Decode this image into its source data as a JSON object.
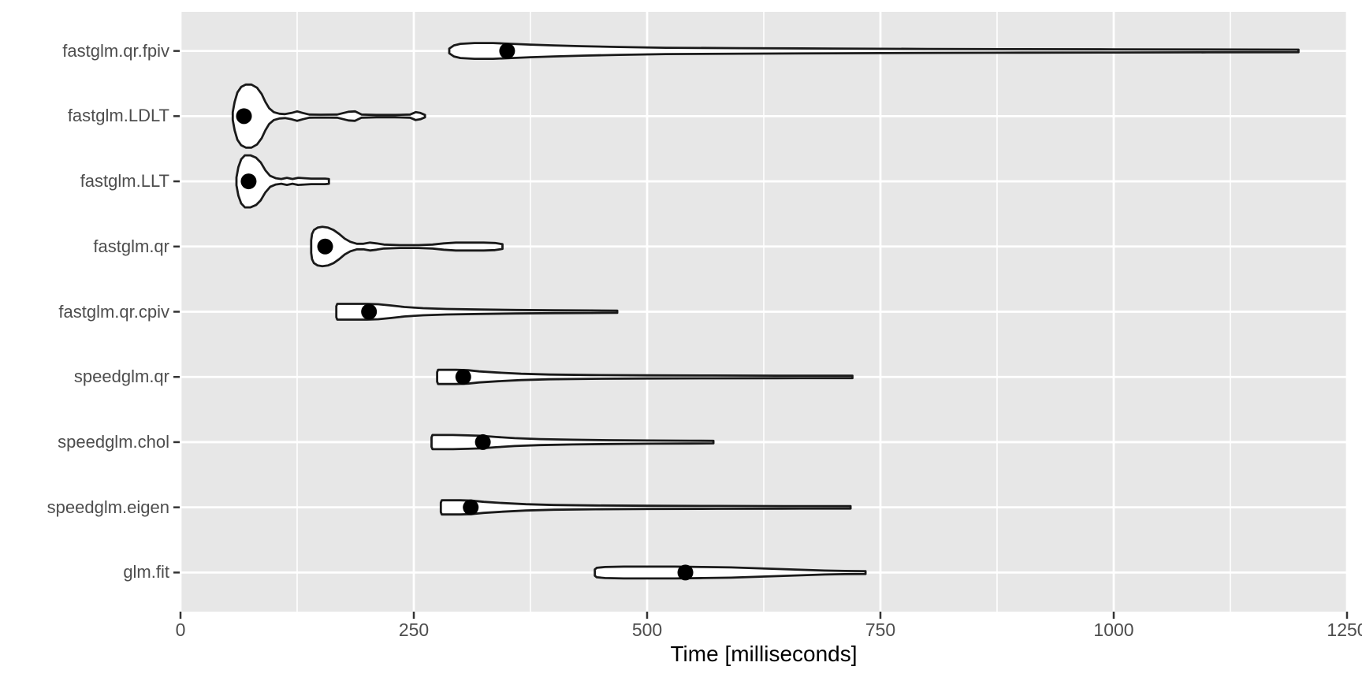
{
  "colors": {
    "panel_background": "#E7E7E7",
    "grid": "#FFFFFF",
    "violin_fill": "#FFFFFF",
    "violin_stroke": "#1A1A1A",
    "median_point": "#000000",
    "axis_text": "#4D4D4D",
    "axis_title": "#000000",
    "tick_mark": "#333333"
  },
  "chart_data": {
    "type": "violin",
    "orientation": "horizontal",
    "title": "",
    "xlabel": "Time [milliseconds]",
    "ylabel": "",
    "xlim": [
      0,
      1250
    ],
    "x_major_ticks": [
      0,
      250,
      500,
      750,
      1000,
      1250
    ],
    "x_minor_gridlines": [
      125,
      375,
      625,
      875,
      1125
    ],
    "grid": "white major+minor vertical, white major horizontal, grey panel",
    "legend_position": "none",
    "categories": [
      "fastglm.qr.fpiv",
      "fastglm.LDLT",
      "fastglm.LLT",
      "fastglm.qr",
      "fastglm.qr.cpiv",
      "speedglm.qr",
      "speedglm.chol",
      "speedglm.eigen",
      "glm.fit"
    ],
    "series": [
      {
        "name": "fastglm.qr.fpiv",
        "min_ms": 288,
        "max_ms": 1198,
        "median_ms": 350,
        "profile": [
          [
            288,
            3
          ],
          [
            293,
            7
          ],
          [
            300,
            9
          ],
          [
            315,
            10
          ],
          [
            335,
            10
          ],
          [
            355,
            9
          ],
          [
            375,
            8
          ],
          [
            400,
            7
          ],
          [
            430,
            6
          ],
          [
            470,
            5
          ],
          [
            520,
            4
          ],
          [
            600,
            3.5
          ],
          [
            700,
            3
          ],
          [
            800,
            2.5
          ],
          [
            900,
            2.2
          ],
          [
            1000,
            2
          ],
          [
            1100,
            1.8
          ],
          [
            1198,
            1.6
          ]
        ]
      },
      {
        "name": "fastglm.LDLT",
        "min_ms": 56,
        "max_ms": 263,
        "median_ms": 68,
        "profile": [
          [
            56,
            5
          ],
          [
            58,
            18
          ],
          [
            61,
            30
          ],
          [
            65,
            37
          ],
          [
            70,
            40
          ],
          [
            76,
            40
          ],
          [
            82,
            36
          ],
          [
            87,
            28
          ],
          [
            91,
            18
          ],
          [
            95,
            10
          ],
          [
            100,
            5
          ],
          [
            106,
            3
          ],
          [
            112,
            2.5
          ],
          [
            119,
            4
          ],
          [
            125,
            6
          ],
          [
            131,
            4
          ],
          [
            138,
            2
          ],
          [
            150,
            1.8
          ],
          [
            168,
            2
          ],
          [
            180,
            5.5
          ],
          [
            187,
            6
          ],
          [
            194,
            2
          ],
          [
            210,
            1.5
          ],
          [
            230,
            1.5
          ],
          [
            246,
            2
          ],
          [
            252,
            5
          ],
          [
            257,
            4
          ],
          [
            262,
            1.5
          ]
        ]
      },
      {
        "name": "fastglm.LLT",
        "min_ms": 60,
        "max_ms": 160,
        "median_ms": 73,
        "profile": [
          [
            60,
            5
          ],
          [
            62,
            18
          ],
          [
            65,
            28
          ],
          [
            69,
            33
          ],
          [
            75,
            33
          ],
          [
            81,
            30
          ],
          [
            86,
            24
          ],
          [
            91,
            14
          ],
          [
            96,
            7
          ],
          [
            102,
            4
          ],
          [
            108,
            3
          ],
          [
            114,
            4.5
          ],
          [
            120,
            3
          ],
          [
            126,
            4.5
          ],
          [
            133,
            4
          ],
          [
            140,
            3.5
          ],
          [
            148,
            3.5
          ],
          [
            155,
            3.5
          ],
          [
            159,
            3
          ]
        ]
      },
      {
        "name": "fastglm.qr",
        "min_ms": 140,
        "max_ms": 345,
        "median_ms": 155,
        "profile": [
          [
            140,
            8
          ],
          [
            141,
            16
          ],
          [
            143,
            21
          ],
          [
            147,
            24
          ],
          [
            152,
            25
          ],
          [
            158,
            24
          ],
          [
            164,
            21
          ],
          [
            170,
            16
          ],
          [
            176,
            10
          ],
          [
            182,
            6
          ],
          [
            189,
            3.5
          ],
          [
            196,
            3.5
          ],
          [
            203,
            5
          ],
          [
            210,
            4
          ],
          [
            218,
            2.5
          ],
          [
            235,
            1.8
          ],
          [
            255,
            1.8
          ],
          [
            270,
            2.5
          ],
          [
            282,
            4
          ],
          [
            295,
            5
          ],
          [
            310,
            5
          ],
          [
            325,
            5
          ],
          [
            337,
            4.5
          ],
          [
            345,
            3
          ]
        ]
      },
      {
        "name": "fastglm.qr.cpiv",
        "min_ms": 167,
        "max_ms": 468,
        "median_ms": 202,
        "profile": [
          [
            167,
            7
          ],
          [
            168,
            10
          ],
          [
            172,
            10
          ],
          [
            185,
            10
          ],
          [
            200,
            10
          ],
          [
            212,
            9.5
          ],
          [
            225,
            8
          ],
          [
            240,
            6
          ],
          [
            260,
            4.5
          ],
          [
            285,
            3.5
          ],
          [
            320,
            2.8
          ],
          [
            360,
            2.2
          ],
          [
            400,
            1.8
          ],
          [
            440,
            1.6
          ],
          [
            468,
            1.4
          ]
        ]
      },
      {
        "name": "speedglm.qr",
        "min_ms": 275,
        "max_ms": 720,
        "median_ms": 303,
        "profile": [
          [
            275,
            6
          ],
          [
            276,
            9
          ],
          [
            282,
            9
          ],
          [
            295,
            9
          ],
          [
            308,
            8.5
          ],
          [
            320,
            7
          ],
          [
            340,
            5.5
          ],
          [
            365,
            4
          ],
          [
            395,
            3
          ],
          [
            440,
            2.4
          ],
          [
            500,
            2
          ],
          [
            570,
            1.8
          ],
          [
            640,
            1.6
          ],
          [
            720,
            1.5
          ]
        ]
      },
      {
        "name": "speedglm.chol",
        "min_ms": 269,
        "max_ms": 571,
        "median_ms": 324,
        "profile": [
          [
            269,
            6
          ],
          [
            270,
            9
          ],
          [
            278,
            9
          ],
          [
            292,
            9
          ],
          [
            308,
            8.5
          ],
          [
            322,
            8
          ],
          [
            338,
            6.5
          ],
          [
            358,
            5
          ],
          [
            385,
            3.8
          ],
          [
            420,
            3
          ],
          [
            460,
            2.4
          ],
          [
            505,
            2
          ],
          [
            545,
            1.8
          ],
          [
            571,
            1.6
          ]
        ]
      },
      {
        "name": "speedglm.eigen",
        "min_ms": 279,
        "max_ms": 718,
        "median_ms": 311,
        "profile": [
          [
            279,
            6
          ],
          [
            280,
            9
          ],
          [
            287,
            9
          ],
          [
            300,
            9
          ],
          [
            312,
            8.5
          ],
          [
            325,
            7
          ],
          [
            345,
            5.5
          ],
          [
            370,
            4
          ],
          [
            400,
            3
          ],
          [
            445,
            2.4
          ],
          [
            505,
            2
          ],
          [
            575,
            1.8
          ],
          [
            645,
            1.6
          ],
          [
            718,
            1.5
          ]
        ]
      },
      {
        "name": "glm.fit",
        "min_ms": 444,
        "max_ms": 734,
        "median_ms": 541,
        "profile": [
          [
            444,
            4
          ],
          [
            446,
            6
          ],
          [
            455,
            7
          ],
          [
            475,
            7.5
          ],
          [
            500,
            7.5
          ],
          [
            530,
            7.5
          ],
          [
            560,
            7
          ],
          [
            590,
            6.5
          ],
          [
            615,
            5.5
          ],
          [
            640,
            4.5
          ],
          [
            665,
            3.5
          ],
          [
            690,
            2.5
          ],
          [
            712,
            2
          ],
          [
            734,
            1.8
          ]
        ]
      }
    ]
  }
}
